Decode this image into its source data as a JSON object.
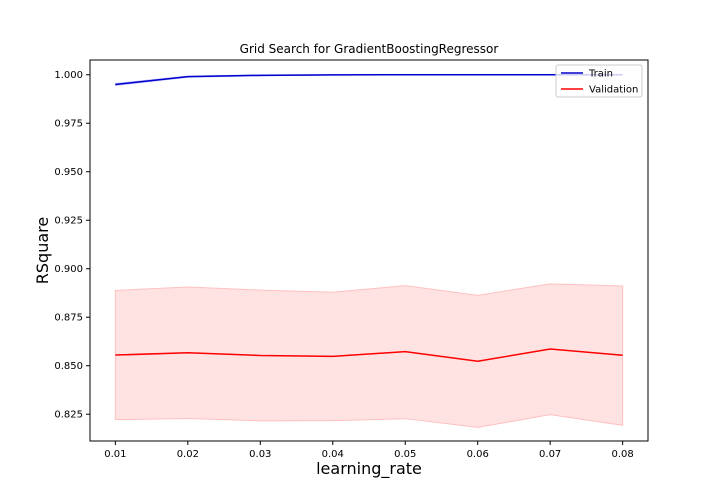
{
  "chart_data": {
    "type": "line",
    "title": "Grid Search for GradientBoostingRegressor",
    "xlabel": "learning_rate",
    "ylabel": "RSquare",
    "x": [
      0.01,
      0.02,
      0.03,
      0.04,
      0.05,
      0.06,
      0.07,
      0.08
    ],
    "x_tick_labels": [
      "0.01",
      "0.02",
      "0.03",
      "0.04",
      "0.05",
      "0.06",
      "0.07",
      "0.08"
    ],
    "y_ticks": [
      0.825,
      0.85,
      0.875,
      0.9,
      0.925,
      0.95,
      0.975,
      1.0
    ],
    "y_tick_labels": [
      "0.825",
      "0.850",
      "0.875",
      "0.900",
      "0.925",
      "0.950",
      "0.975",
      "1.000"
    ],
    "xlim": [
      0.0065,
      0.0835
    ],
    "ylim": [
      0.8112,
      1.0076
    ],
    "grid": false,
    "legend_position": "top-right",
    "series": [
      {
        "name": "Train",
        "color": "#0000cc",
        "values": [
          0.995,
          0.999,
          0.9997,
          0.9999,
          1.0,
          1.0,
          1.0,
          1.0
        ],
        "band_lower": [
          0.9945,
          0.9987,
          0.9995,
          0.9998,
          1.0,
          1.0,
          1.0,
          1.0
        ],
        "band_upper": [
          0.9955,
          0.9993,
          0.9999,
          1.0,
          1.0,
          1.0,
          1.0,
          1.0
        ],
        "band_color": "#bbbbff"
      },
      {
        "name": "Validation",
        "color": "#ff0000",
        "values": [
          0.8555,
          0.8567,
          0.8553,
          0.8548,
          0.8573,
          0.8523,
          0.8586,
          0.8554
        ],
        "band_lower": [
          0.8222,
          0.8228,
          0.8216,
          0.8217,
          0.8227,
          0.8182,
          0.8248,
          0.8193
        ],
        "band_upper": [
          0.8888,
          0.8906,
          0.889,
          0.8879,
          0.8913,
          0.8863,
          0.8922,
          0.8911
        ],
        "band_color": "#ffc0c0"
      }
    ]
  }
}
